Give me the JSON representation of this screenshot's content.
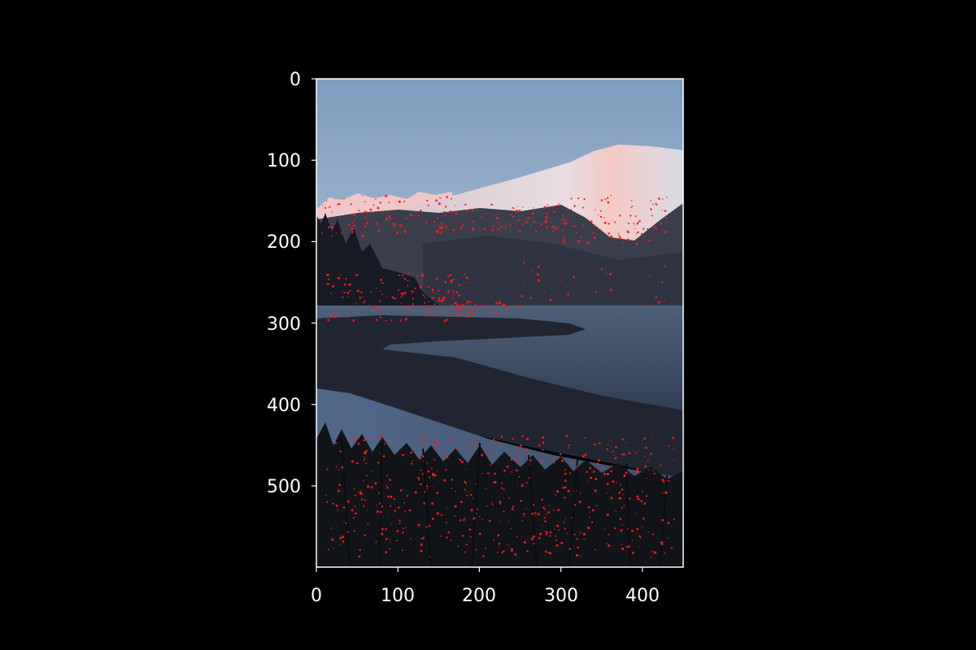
{
  "figure": {
    "background": "#000000",
    "axis_color": "#ffffff",
    "marker_color": "#ff0000",
    "x_ticks": [
      "0",
      "100",
      "200",
      "300",
      "400"
    ],
    "y_ticks": [
      "0",
      "100",
      "200",
      "300",
      "400",
      "500"
    ]
  },
  "image": {
    "subject": "mountain fjord at dusk with snow-capped peaks, a dark beach spit, water, and foreground brush",
    "overlay": "red keypoint markers scattered over ridgelines, trees and foreground reeds"
  }
}
